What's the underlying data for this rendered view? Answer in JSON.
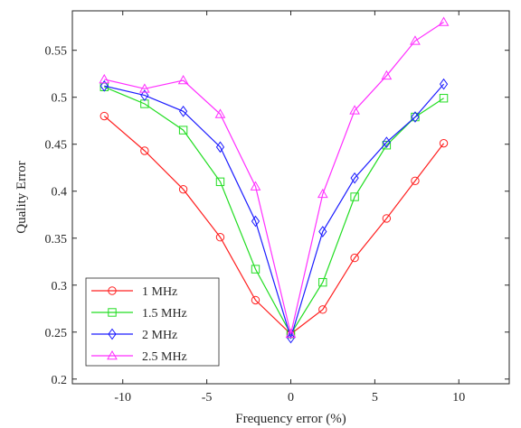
{
  "chart_data": {
    "type": "line",
    "xlabel": "Frequency error (%)",
    "ylabel": "Quality Error",
    "xlim": [
      -13,
      13
    ],
    "ylim": [
      0.195,
      0.592
    ],
    "xticks": [
      -10,
      -5,
      0,
      5,
      10
    ],
    "xtick_labels": [
      "-10",
      "-5",
      "0",
      "5",
      "10"
    ],
    "yticks": [
      0.2,
      0.25,
      0.3,
      0.35,
      0.4,
      0.45,
      0.5,
      0.55
    ],
    "ytick_labels": [
      "0.2",
      "0.25",
      "0.3",
      "0.35",
      "0.4",
      "0.45",
      "0.5",
      "0.55"
    ],
    "grid": false,
    "legend_position": "bottom-left",
    "x": [
      -11.1,
      -8.7,
      -6.4,
      -4.2,
      -2.1,
      0,
      1.9,
      3.8,
      5.7,
      7.4,
      9.1
    ],
    "series": [
      {
        "name": "1 MHz",
        "color": "#ff2020",
        "marker": "circle",
        "values": [
          0.48,
          0.443,
          0.402,
          0.351,
          0.284,
          0.248,
          0.274,
          0.329,
          0.371,
          0.411,
          0.451
        ]
      },
      {
        "name": "1.5 MHz",
        "color": "#22dd22",
        "marker": "square",
        "values": [
          0.511,
          0.493,
          0.465,
          0.41,
          0.317,
          0.248,
          0.303,
          0.394,
          0.449,
          0.479,
          0.499
        ]
      },
      {
        "name": "2 MHz",
        "color": "#1c1cff",
        "marker": "diamond",
        "values": [
          0.512,
          0.502,
          0.485,
          0.447,
          0.368,
          0.244,
          0.357,
          0.414,
          0.452,
          0.479,
          0.514
        ]
      },
      {
        "name": "2.5 MHz",
        "color": "#ff2fff",
        "marker": "triangle",
        "values": [
          0.519,
          0.509,
          0.518,
          0.482,
          0.405,
          0.248,
          0.397,
          0.486,
          0.523,
          0.56,
          0.58
        ]
      }
    ]
  }
}
